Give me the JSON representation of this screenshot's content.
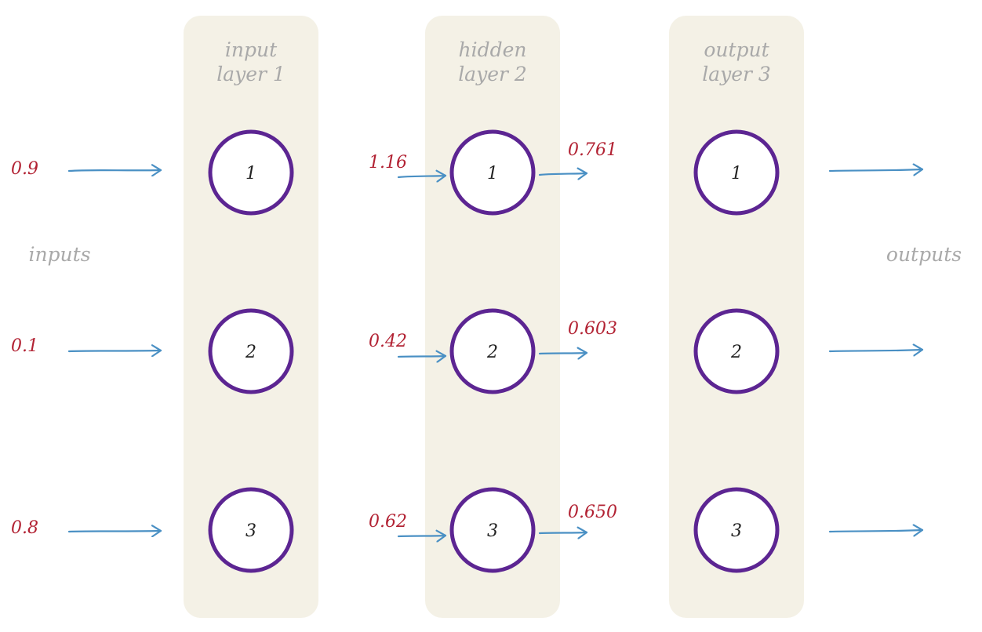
{
  "colors": {
    "panel": "#f4f1e6",
    "node_stroke": "#5c2592",
    "arrow": "#4a90c4",
    "value_text": "#b22233",
    "label_text": "#a9a9a9"
  },
  "side_labels": {
    "inputs": "inputs",
    "outputs": "outputs"
  },
  "layers": [
    {
      "title_line1": "input",
      "title_line2": "layer 1",
      "nodes": [
        "1",
        "2",
        "3"
      ]
    },
    {
      "title_line1": "hidden",
      "title_line2": "layer 2",
      "nodes": [
        "1",
        "2",
        "3"
      ]
    },
    {
      "title_line1": "output",
      "title_line2": "layer 3",
      "nodes": [
        "1",
        "2",
        "3"
      ]
    }
  ],
  "input_values": [
    "0.9",
    "0.1",
    "0.8"
  ],
  "hidden_inputs": [
    "1.16",
    "0.42",
    "0.62"
  ],
  "hidden_outputs": [
    "0.761",
    "0.603",
    "0.650"
  ]
}
